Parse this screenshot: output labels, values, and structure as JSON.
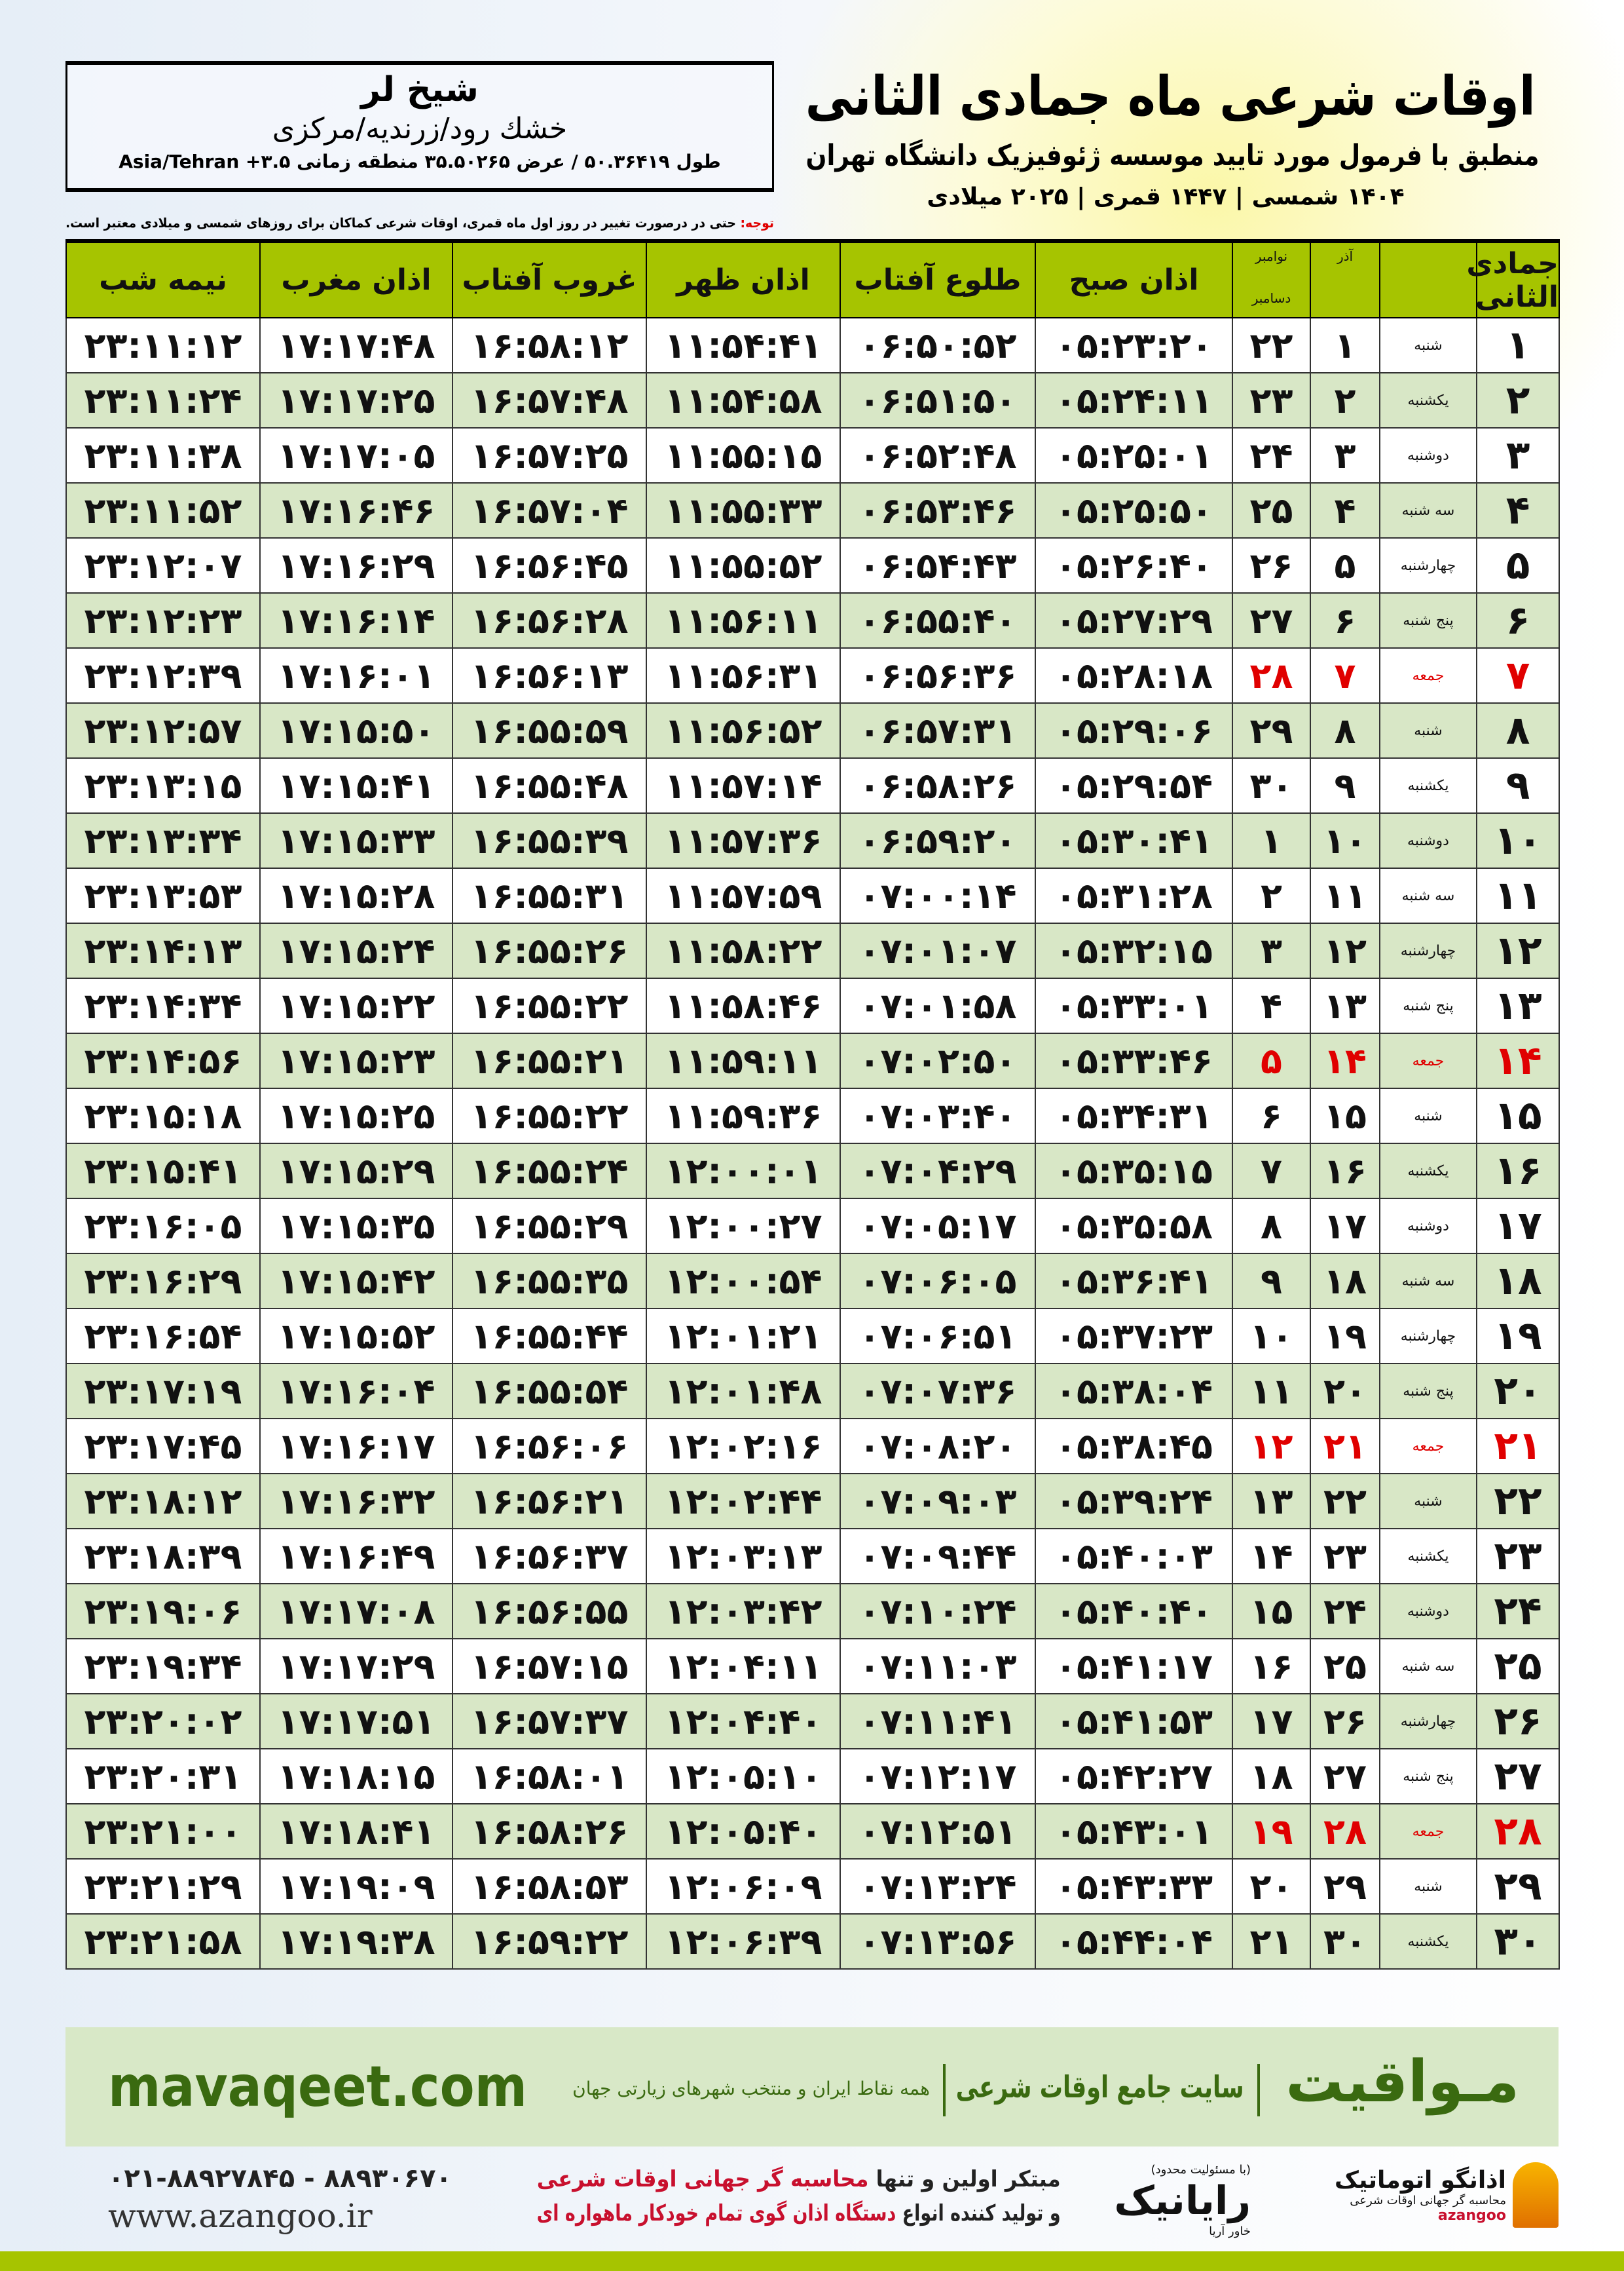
{
  "header": {
    "title": "اوقات شرعی ماه جمادی الثانی",
    "subtitle": "منطبق با فرمول مورد تایید موسسه ژئوفیزیک دانشگاه تهران",
    "years": "۱۴۰۴ شمسی | ۱۴۴۷ قمری | ۲۰۲۵ میلادی"
  },
  "location": {
    "city": "شیخ لر",
    "region": "خشك رود/زرنديه/مرکزی",
    "coords": "طول ۵۰.۳۶۴۱۹ / عرض ۳۵.۵۰۲۶۵ منطقه زمانی ۳.۵+ Asia/Tehran"
  },
  "notice": {
    "label": "توجه:",
    "text": " حتی در درصورت تغییر در روز اول ماه قمری، اوقات شرعی کماکان برای روزهای شمسی و میلادی معتبر است."
  },
  "table": {
    "headers": {
      "day": "جمادی الثانی",
      "azar": "آذر",
      "nov": "نوامبر",
      "dec": "دسامبر",
      "fajr": "اذان صبح",
      "sunrise": "طلوع آفتاب",
      "dhuhr": "اذان ظهر",
      "sunset": "غروب آفتاب",
      "maghrib": "اذان مغرب",
      "midnight": "نیمه شب"
    },
    "holiday_color": "#e00000",
    "header_color": "#a6c400",
    "alt_row_color": "#d8e7c6",
    "rows": [
      [
        "۱",
        "شنبه",
        "۱",
        "۲۲",
        "۰۵:۲۳:۲۰",
        "۰۶:۵۰:۵۲",
        "۱۱:۵۴:۴۱",
        "۱۶:۵۸:۱۲",
        "۱۷:۱۷:۴۸",
        "۲۳:۱۱:۱۲"
      ],
      [
        "۲",
        "یکشنبه",
        "۲",
        "۲۳",
        "۰۵:۲۴:۱۱",
        "۰۶:۵۱:۵۰",
        "۱۱:۵۴:۵۸",
        "۱۶:۵۷:۴۸",
        "۱۷:۱۷:۲۵",
        "۲۳:۱۱:۲۴"
      ],
      [
        "۳",
        "دوشنبه",
        "۳",
        "۲۴",
        "۰۵:۲۵:۰۱",
        "۰۶:۵۲:۴۸",
        "۱۱:۵۵:۱۵",
        "۱۶:۵۷:۲۵",
        "۱۷:۱۷:۰۵",
        "۲۳:۱۱:۳۸"
      ],
      [
        "۴",
        "سه شنبه",
        "۴",
        "۲۵",
        "۰۵:۲۵:۵۰",
        "۰۶:۵۳:۴۶",
        "۱۱:۵۵:۳۳",
        "۱۶:۵۷:۰۴",
        "۱۷:۱۶:۴۶",
        "۲۳:۱۱:۵۲"
      ],
      [
        "۵",
        "چهارشنبه",
        "۵",
        "۲۶",
        "۰۵:۲۶:۴۰",
        "۰۶:۵۴:۴۳",
        "۱۱:۵۵:۵۲",
        "۱۶:۵۶:۴۵",
        "۱۷:۱۶:۲۹",
        "۲۳:۱۲:۰۷"
      ],
      [
        "۶",
        "پنج شنبه",
        "۶",
        "۲۷",
        "۰۵:۲۷:۲۹",
        "۰۶:۵۵:۴۰",
        "۱۱:۵۶:۱۱",
        "۱۶:۵۶:۲۸",
        "۱۷:۱۶:۱۴",
        "۲۳:۱۲:۲۳"
      ],
      [
        "۷",
        "جمعه",
        "۷",
        "۲۸",
        "۰۵:۲۸:۱۸",
        "۰۶:۵۶:۳۶",
        "۱۱:۵۶:۳۱",
        "۱۶:۵۶:۱۳",
        "۱۷:۱۶:۰۱",
        "۲۳:۱۲:۳۹"
      ],
      [
        "۸",
        "شنبه",
        "۸",
        "۲۹",
        "۰۵:۲۹:۰۶",
        "۰۶:۵۷:۳۱",
        "۱۱:۵۶:۵۲",
        "۱۶:۵۵:۵۹",
        "۱۷:۱۵:۵۰",
        "۲۳:۱۲:۵۷"
      ],
      [
        "۹",
        "یکشنبه",
        "۹",
        "۳۰",
        "۰۵:۲۹:۵۴",
        "۰۶:۵۸:۲۶",
        "۱۱:۵۷:۱۴",
        "۱۶:۵۵:۴۸",
        "۱۷:۱۵:۴۱",
        "۲۳:۱۳:۱۵"
      ],
      [
        "۱۰",
        "دوشنبه",
        "۱۰",
        "۱",
        "۰۵:۳۰:۴۱",
        "۰۶:۵۹:۲۰",
        "۱۱:۵۷:۳۶",
        "۱۶:۵۵:۳۹",
        "۱۷:۱۵:۳۳",
        "۲۳:۱۳:۳۴"
      ],
      [
        "۱۱",
        "سه شنبه",
        "۱۱",
        "۲",
        "۰۵:۳۱:۲۸",
        "۰۷:۰۰:۱۴",
        "۱۱:۵۷:۵۹",
        "۱۶:۵۵:۳۱",
        "۱۷:۱۵:۲۸",
        "۲۳:۱۳:۵۳"
      ],
      [
        "۱۲",
        "چهارشنبه",
        "۱۲",
        "۳",
        "۰۵:۳۲:۱۵",
        "۰۷:۰۱:۰۷",
        "۱۱:۵۸:۲۲",
        "۱۶:۵۵:۲۶",
        "۱۷:۱۵:۲۴",
        "۲۳:۱۴:۱۳"
      ],
      [
        "۱۳",
        "پنج شنبه",
        "۱۳",
        "۴",
        "۰۵:۳۳:۰۱",
        "۰۷:۰۱:۵۸",
        "۱۱:۵۸:۴۶",
        "۱۶:۵۵:۲۲",
        "۱۷:۱۵:۲۲",
        "۲۳:۱۴:۳۴"
      ],
      [
        "۱۴",
        "جمعه",
        "۱۴",
        "۵",
        "۰۵:۳۳:۴۶",
        "۰۷:۰۲:۵۰",
        "۱۱:۵۹:۱۱",
        "۱۶:۵۵:۲۱",
        "۱۷:۱۵:۲۳",
        "۲۳:۱۴:۵۶"
      ],
      [
        "۱۵",
        "شنبه",
        "۱۵",
        "۶",
        "۰۵:۳۴:۳۱",
        "۰۷:۰۳:۴۰",
        "۱۱:۵۹:۳۶",
        "۱۶:۵۵:۲۲",
        "۱۷:۱۵:۲۵",
        "۲۳:۱۵:۱۸"
      ],
      [
        "۱۶",
        "یکشنبه",
        "۱۶",
        "۷",
        "۰۵:۳۵:۱۵",
        "۰۷:۰۴:۲۹",
        "۱۲:۰۰:۰۱",
        "۱۶:۵۵:۲۴",
        "۱۷:۱۵:۲۹",
        "۲۳:۱۵:۴۱"
      ],
      [
        "۱۷",
        "دوشنبه",
        "۱۷",
        "۸",
        "۰۵:۳۵:۵۸",
        "۰۷:۰۵:۱۷",
        "۱۲:۰۰:۲۷",
        "۱۶:۵۵:۲۹",
        "۱۷:۱۵:۳۵",
        "۲۳:۱۶:۰۵"
      ],
      [
        "۱۸",
        "سه شنبه",
        "۱۸",
        "۹",
        "۰۵:۳۶:۴۱",
        "۰۷:۰۶:۰۵",
        "۱۲:۰۰:۵۴",
        "۱۶:۵۵:۳۵",
        "۱۷:۱۵:۴۲",
        "۲۳:۱۶:۲۹"
      ],
      [
        "۱۹",
        "چهارشنبه",
        "۱۹",
        "۱۰",
        "۰۵:۳۷:۲۳",
        "۰۷:۰۶:۵۱",
        "۱۲:۰۱:۲۱",
        "۱۶:۵۵:۴۴",
        "۱۷:۱۵:۵۲",
        "۲۳:۱۶:۵۴"
      ],
      [
        "۲۰",
        "پنج شنبه",
        "۲۰",
        "۱۱",
        "۰۵:۳۸:۰۴",
        "۰۷:۰۷:۳۶",
        "۱۲:۰۱:۴۸",
        "۱۶:۵۵:۵۴",
        "۱۷:۱۶:۰۴",
        "۲۳:۱۷:۱۹"
      ],
      [
        "۲۱",
        "جمعه",
        "۲۱",
        "۱۲",
        "۰۵:۳۸:۴۵",
        "۰۷:۰۸:۲۰",
        "۱۲:۰۲:۱۶",
        "۱۶:۵۶:۰۶",
        "۱۷:۱۶:۱۷",
        "۲۳:۱۷:۴۵"
      ],
      [
        "۲۲",
        "شنبه",
        "۲۲",
        "۱۳",
        "۰۵:۳۹:۲۴",
        "۰۷:۰۹:۰۳",
        "۱۲:۰۲:۴۴",
        "۱۶:۵۶:۲۱",
        "۱۷:۱۶:۳۲",
        "۲۳:۱۸:۱۲"
      ],
      [
        "۲۳",
        "یکشنبه",
        "۲۳",
        "۱۴",
        "۰۵:۴۰:۰۳",
        "۰۷:۰۹:۴۴",
        "۱۲:۰۳:۱۳",
        "۱۶:۵۶:۳۷",
        "۱۷:۱۶:۴۹",
        "۲۳:۱۸:۳۹"
      ],
      [
        "۲۴",
        "دوشنبه",
        "۲۴",
        "۱۵",
        "۰۵:۴۰:۴۰",
        "۰۷:۱۰:۲۴",
        "۱۲:۰۳:۴۲",
        "۱۶:۵۶:۵۵",
        "۱۷:۱۷:۰۸",
        "۲۳:۱۹:۰۶"
      ],
      [
        "۲۵",
        "سه شنبه",
        "۲۵",
        "۱۶",
        "۰۵:۴۱:۱۷",
        "۰۷:۱۱:۰۳",
        "۱۲:۰۴:۱۱",
        "۱۶:۵۷:۱۵",
        "۱۷:۱۷:۲۹",
        "۲۳:۱۹:۳۴"
      ],
      [
        "۲۶",
        "چهارشنبه",
        "۲۶",
        "۱۷",
        "۰۵:۴۱:۵۳",
        "۰۷:۱۱:۴۱",
        "۱۲:۰۴:۴۰",
        "۱۶:۵۷:۳۷",
        "۱۷:۱۷:۵۱",
        "۲۳:۲۰:۰۲"
      ],
      [
        "۲۷",
        "پنج شنبه",
        "۲۷",
        "۱۸",
        "۰۵:۴۲:۲۷",
        "۰۷:۱۲:۱۷",
        "۱۲:۰۵:۱۰",
        "۱۶:۵۸:۰۱",
        "۱۷:۱۸:۱۵",
        "۲۳:۲۰:۳۱"
      ],
      [
        "۲۸",
        "جمعه",
        "۲۸",
        "۱۹",
        "۰۵:۴۳:۰۱",
        "۰۷:۱۲:۵۱",
        "۱۲:۰۵:۴۰",
        "۱۶:۵۸:۲۶",
        "۱۷:۱۸:۴۱",
        "۲۳:۲۱:۰۰"
      ],
      [
        "۲۹",
        "شنبه",
        "۲۹",
        "۲۰",
        "۰۵:۴۳:۳۳",
        "۰۷:۱۳:۲۴",
        "۱۲:۰۶:۰۹",
        "۱۶:۵۸:۵۳",
        "۱۷:۱۹:۰۹",
        "۲۳:۲۱:۲۹"
      ],
      [
        "۳۰",
        "یکشنبه",
        "۳۰",
        "۲۱",
        "۰۵:۴۴:۰۴",
        "۰۷:۱۳:۵۶",
        "۱۲:۰۶:۳۹",
        "۱۶:۵۹:۲۲",
        "۱۷:۱۹:۳۸",
        "۲۳:۲۱:۵۸"
      ]
    ],
    "holidays": [
      7,
      14,
      21,
      28
    ]
  },
  "footer": {
    "brand": "مـواقیت",
    "slogan": "سایت جامع اوقات شرعی",
    "slogan_sub": "همه نقاط ایران و منتخب شهرهای زیارتی جهان",
    "site": "mavaqeet.com",
    "phone": "۰۲۱-۸۸۹۲۷۸۴۵ - ۸۸۹۳۰۶۷۰",
    "web": "www.azangoo.ir",
    "pitch1a": "مبتکر اولین و تنها ",
    "pitch1b": "محاسبه گر جهانی اوقات شرعی",
    "pitch2a": "و تولید کننده انواع ",
    "pitch2b": "دستگاه اذان گوی تمام خودکار ماهواره ای",
    "raya_small": "(با مسئولیت محدود)",
    "raya": "رایانیک",
    "raya_sub": "خاور آریا",
    "azangoo": "اذانگو اتوماتیک",
    "azangoo_en": "azangoo",
    "azangoo_tag": "محاسبه گر جهانی اوقات شرعی",
    "accent": "#3a6a10",
    "bar_color": "#a6c400"
  }
}
